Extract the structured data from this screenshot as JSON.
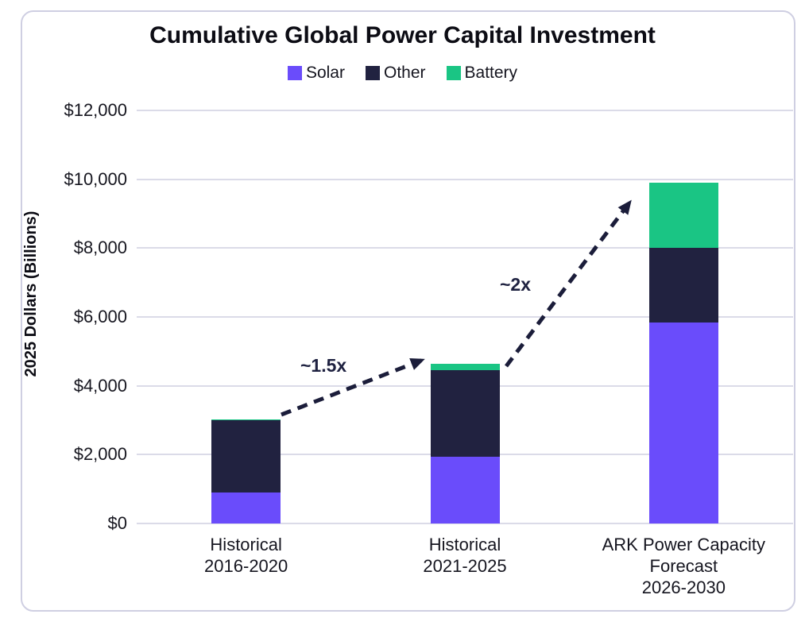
{
  "header": {
    "title": "Cumulative Global Power Capital Investment"
  },
  "chart_data": {
    "type": "bar",
    "stacked": true,
    "title": "Cumulative Global Power Capital Investment",
    "xlabel": "",
    "ylabel": "2025 Dollars (Billions)",
    "ylim": [
      0,
      12000
    ],
    "ytick_step": 2000,
    "ytick_labels": [
      "$0",
      "$2,000",
      "$4,000",
      "$6,000",
      "$8,000",
      "$10,000",
      "$12,000"
    ],
    "grid": true,
    "legend_position": "top",
    "categories": [
      "Historical\n2016-2020",
      "Historical\n2021-2025",
      "ARK Power Capacity\nForecast\n2026-2030"
    ],
    "series": [
      {
        "name": "Solar",
        "color": "#6A4CFB",
        "values": [
          900,
          1950,
          5850
        ]
      },
      {
        "name": "Other",
        "color": "#212240",
        "values": [
          2100,
          2500,
          2150
        ]
      },
      {
        "name": "Battery",
        "color": "#1AC584",
        "values": [
          30,
          200,
          1900
        ]
      }
    ],
    "totals": [
      3030,
      4650,
      9900
    ],
    "annotations": [
      {
        "label": "~1.5x",
        "from": "Historical 2016-2020",
        "to": "Historical 2021-2025"
      },
      {
        "label": "~2x",
        "from": "Historical 2021-2025",
        "to": "ARK Power Capacity Forecast 2026-2030"
      }
    ],
    "colors": {
      "grid": "#dbdbe8",
      "arrow": "#1b1d3a",
      "frame_border": "#cfcfe2",
      "text": "#15151f"
    }
  }
}
